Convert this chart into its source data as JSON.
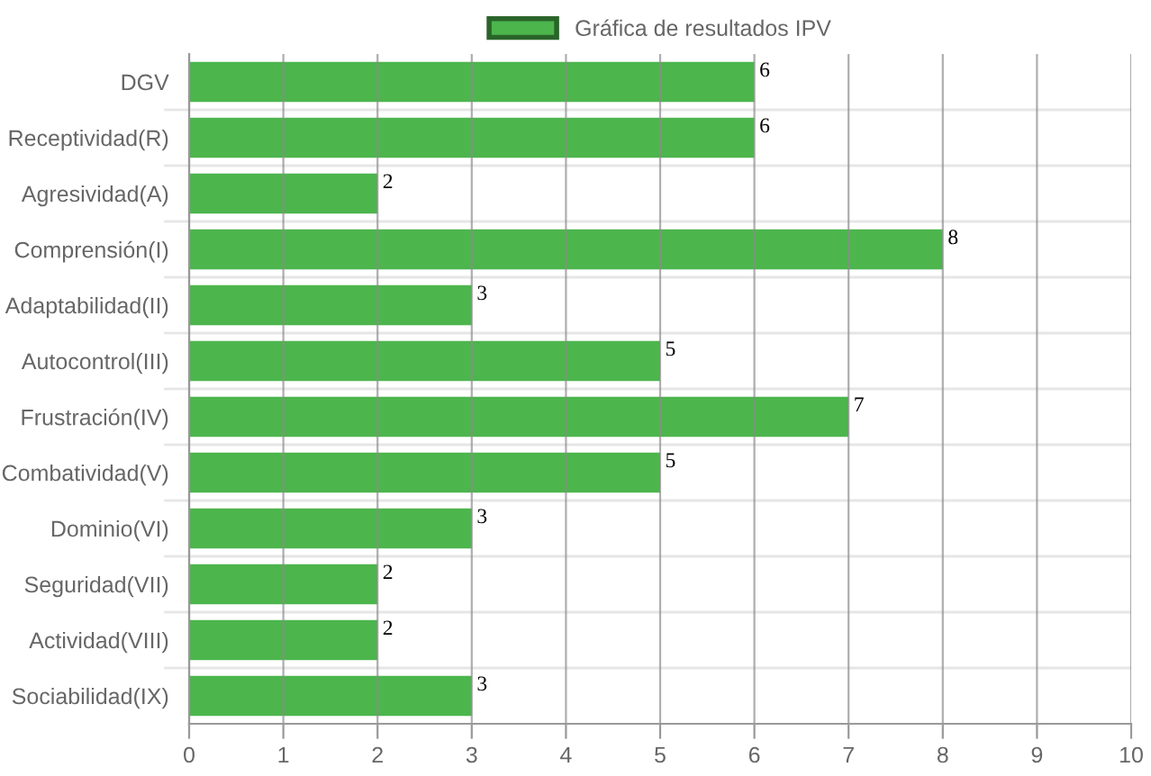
{
  "chart_data": {
    "type": "bar",
    "orientation": "horizontal",
    "categories": [
      "DGV",
      "Receptividad(R)",
      "Agresividad(A)",
      "Comprensión(I)",
      "Adaptabilidad(II)",
      "Autocontrol(III)",
      "Frustración(IV)",
      "Combatividad(V)",
      "Dominio(VI)",
      "Seguridad(VII)",
      "Actividad(VIII)",
      "Sociabilidad(IX)"
    ],
    "series": [
      {
        "name": "Gráfica de resultados IPV",
        "color": "#4cb54c",
        "values": [
          6,
          6,
          2,
          8,
          3,
          5,
          7,
          5,
          3,
          2,
          2,
          3
        ]
      }
    ],
    "xlim": [
      0,
      10
    ],
    "xticks": [
      0,
      1,
      2,
      3,
      4,
      5,
      6,
      7,
      8,
      9,
      10
    ],
    "grid": true,
    "legend": "top",
    "data_labels": true
  }
}
